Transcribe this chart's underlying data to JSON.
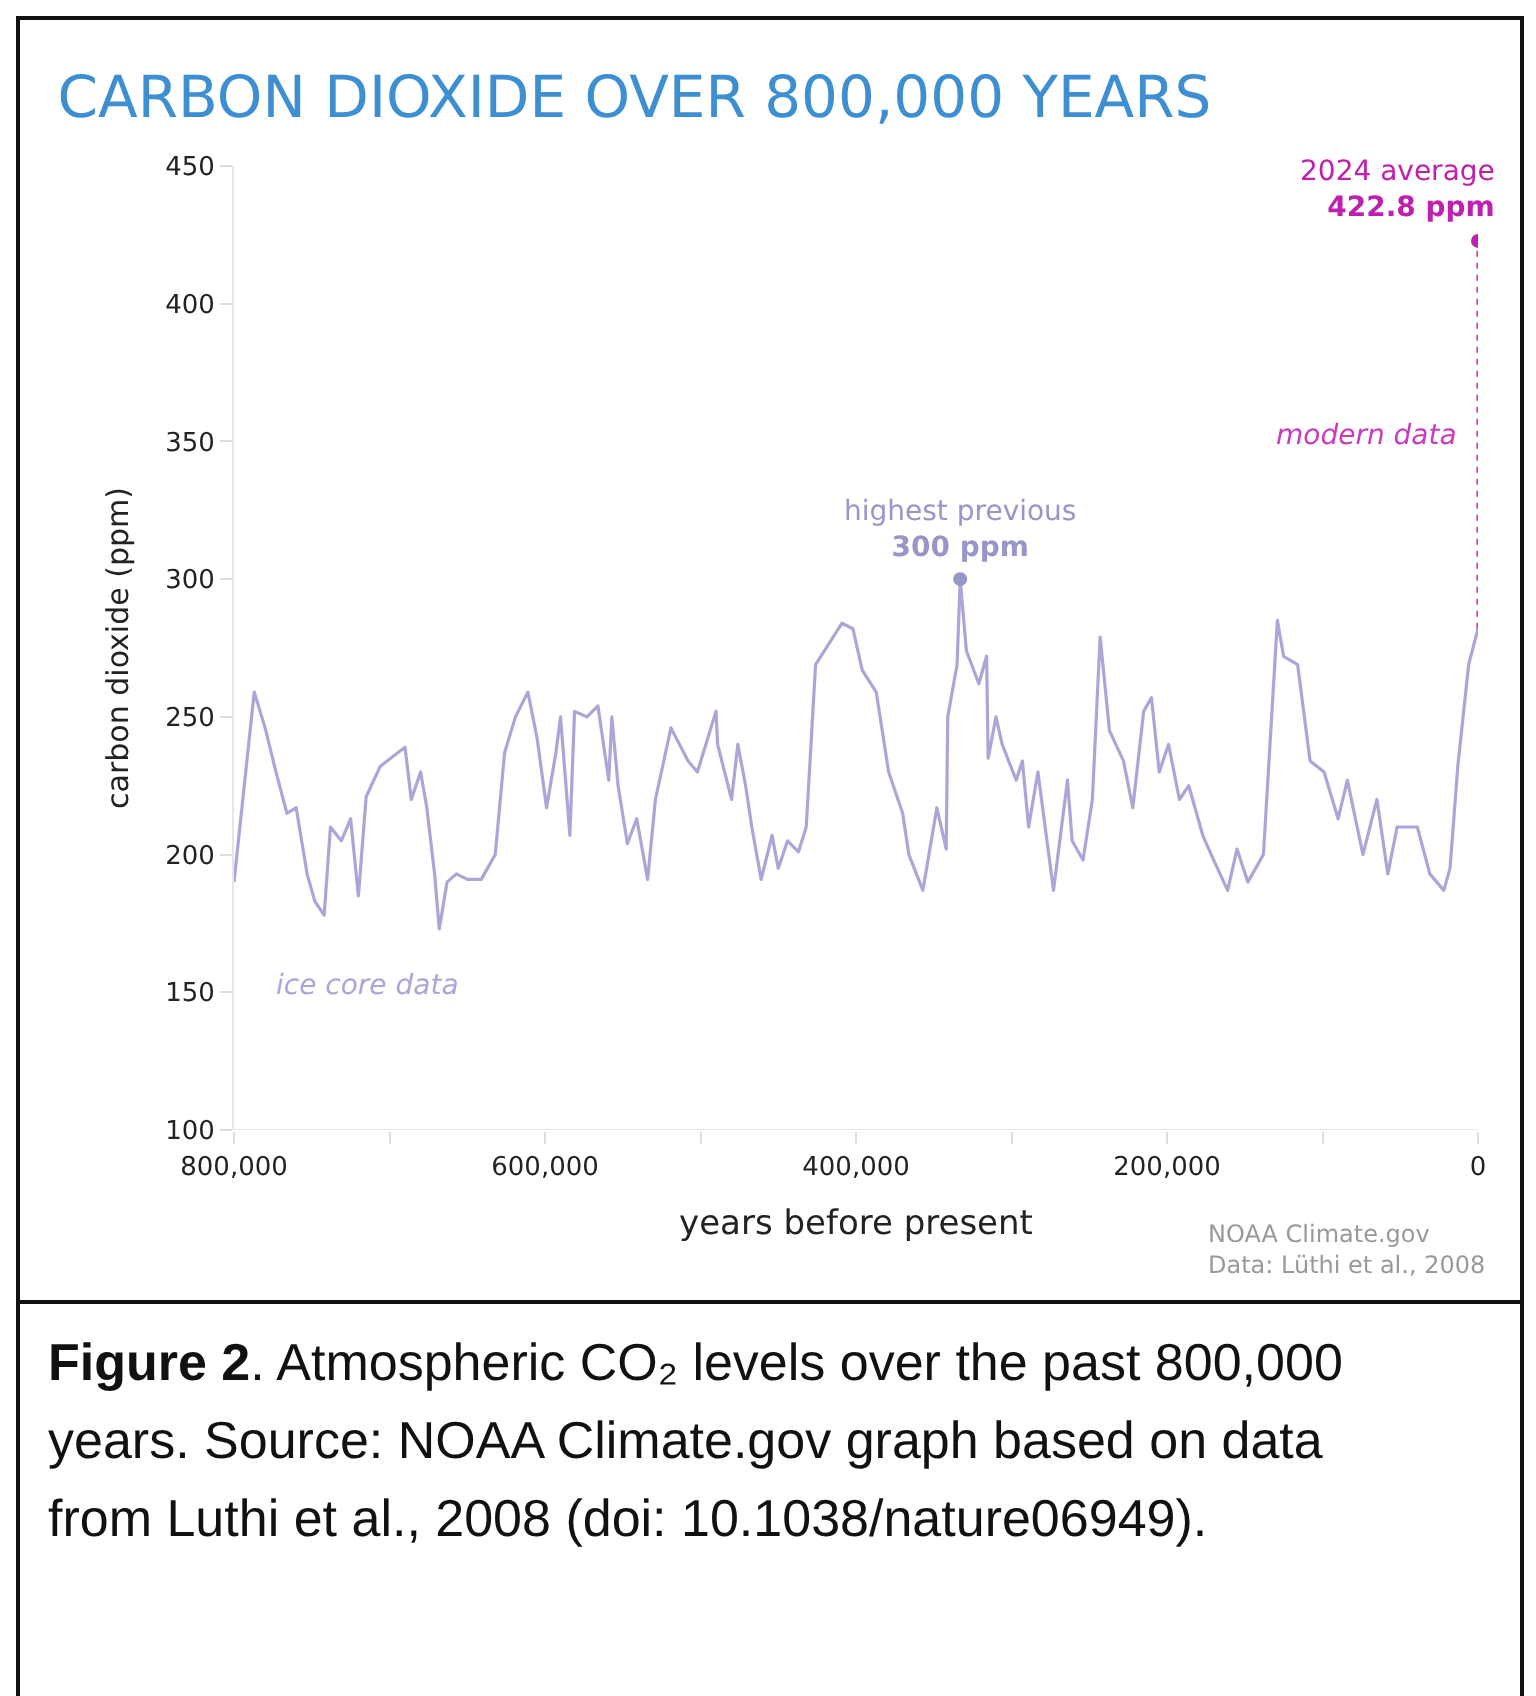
{
  "chart_data": {
    "type": "line",
    "title": "CARBON DIOXIDE OVER 800,000 YEARS",
    "xlabel": "years before present",
    "ylabel": "carbon dioxide (ppm)",
    "xlim": [
      800000,
      0
    ],
    "xticks": [
      {
        "value": 800000,
        "label": "800,000"
      },
      {
        "value": 700000,
        "label": null
      },
      {
        "value": 600000,
        "label": "600,000"
      },
      {
        "value": 500000,
        "label": null
      },
      {
        "value": 400000,
        "label": "400,000"
      },
      {
        "value": 300000,
        "label": null
      },
      {
        "value": 200000,
        "label": "200,000"
      },
      {
        "value": 100000,
        "label": null
      },
      0
    ],
    "ylim": [
      100,
      450
    ],
    "yticks": [
      100,
      150,
      200,
      250,
      300,
      350,
      400,
      450
    ],
    "grid": false,
    "legend": false,
    "line_style": "solid",
    "series": [
      {
        "name": "ice core data",
        "color": "#aaa7d8",
        "x": [
          800000,
          787000,
          780000,
          773000,
          766000,
          760000,
          753000,
          748000,
          742000,
          738000,
          731000,
          725000,
          720000,
          715000,
          706000,
          697000,
          690000,
          686000,
          680000,
          676000,
          671000,
          668000,
          663000,
          657000,
          650000,
          641000,
          632000,
          626000,
          619000,
          611000,
          605000,
          599000,
          593000,
          590000,
          584000,
          581000,
          573000,
          566000,
          559000,
          557000,
          553000,
          547000,
          541000,
          534000,
          529000,
          519000,
          508000,
          502000,
          490000,
          489000,
          480000,
          476000,
          471000,
          467000,
          461000,
          454000,
          450000,
          444000,
          437000,
          432000,
          426000,
          418000,
          409000,
          402000,
          396000,
          387000,
          379000,
          370000,
          366000,
          357000,
          348000,
          342000,
          341000,
          335000,
          333000,
          329000,
          321000,
          316000,
          315000,
          310000,
          306000,
          297000,
          293000,
          289000,
          283000,
          273000,
          264000,
          261000,
          254000,
          248000,
          243000,
          237000,
          228000,
          222000,
          215000,
          210000,
          205000,
          199000,
          192000,
          186000,
          177000,
          170000,
          161000,
          155000,
          148000,
          138000,
          129000,
          125000,
          116000,
          108000,
          99000,
          90000,
          84000,
          74000,
          65000,
          58000,
          52000,
          39000,
          31000,
          22000,
          18000,
          13000,
          6000,
          0
        ],
        "values": [
          190,
          259,
          246,
          230,
          215,
          217,
          193,
          183,
          178,
          210,
          205,
          213,
          185,
          221,
          232,
          236,
          239,
          220,
          230,
          217,
          193,
          173,
          190,
          193,
          191,
          191,
          200,
          237,
          250,
          259,
          242,
          217,
          237,
          250,
          207,
          252,
          250,
          254,
          227,
          250,
          225,
          204,
          213,
          191,
          220,
          246,
          234,
          230,
          252,
          240,
          220,
          240,
          225,
          210,
          191,
          207,
          195,
          205,
          201,
          210,
          269,
          276,
          284,
          282,
          267,
          259,
          230,
          215,
          200,
          187,
          217,
          202,
          250,
          269,
          300,
          274,
          262,
          272,
          235,
          250,
          240,
          227,
          234,
          210,
          230,
          187,
          227,
          205,
          198,
          220,
          279,
          245,
          234,
          217,
          252,
          257,
          230,
          240,
          220,
          225,
          207,
          198,
          187,
          202,
          190,
          200,
          285,
          272,
          269,
          234,
          230,
          213,
          227,
          200,
          220,
          193,
          210,
          210,
          193,
          187,
          195,
          232,
          269,
          282
        ]
      },
      {
        "name": "modern data",
        "color": "#c83cc0",
        "line_style": "dotted",
        "x": [
          0,
          0
        ],
        "values": [
          282,
          422.8
        ]
      },
      {
        "type": "scatter",
        "marker": "circle",
        "color": "#9896c8",
        "x": [
          333000
        ],
        "values": [
          300
        ]
      },
      {
        "type": "scatter",
        "marker": "circle",
        "color": "#c020b0",
        "x": [
          0
        ],
        "values": [
          422.8
        ]
      }
    ],
    "annotations": [
      {
        "text": "highest previous\n300 ppm",
        "x": 333000,
        "y": 300
      },
      {
        "text": "2024 average\n422.8 ppm",
        "x": 0,
        "y": 422.8
      },
      "NOAA Climate.gov\nData: Lüthi et al., 2008",
      "Figure 2. Atmospheric CO₂ levels over the past 800,000 years. Source: NOAA Climate.gov graph based on data from Luthi et al., 2008 (doi: 10.1038/nature06949)."
    ]
  }
}
